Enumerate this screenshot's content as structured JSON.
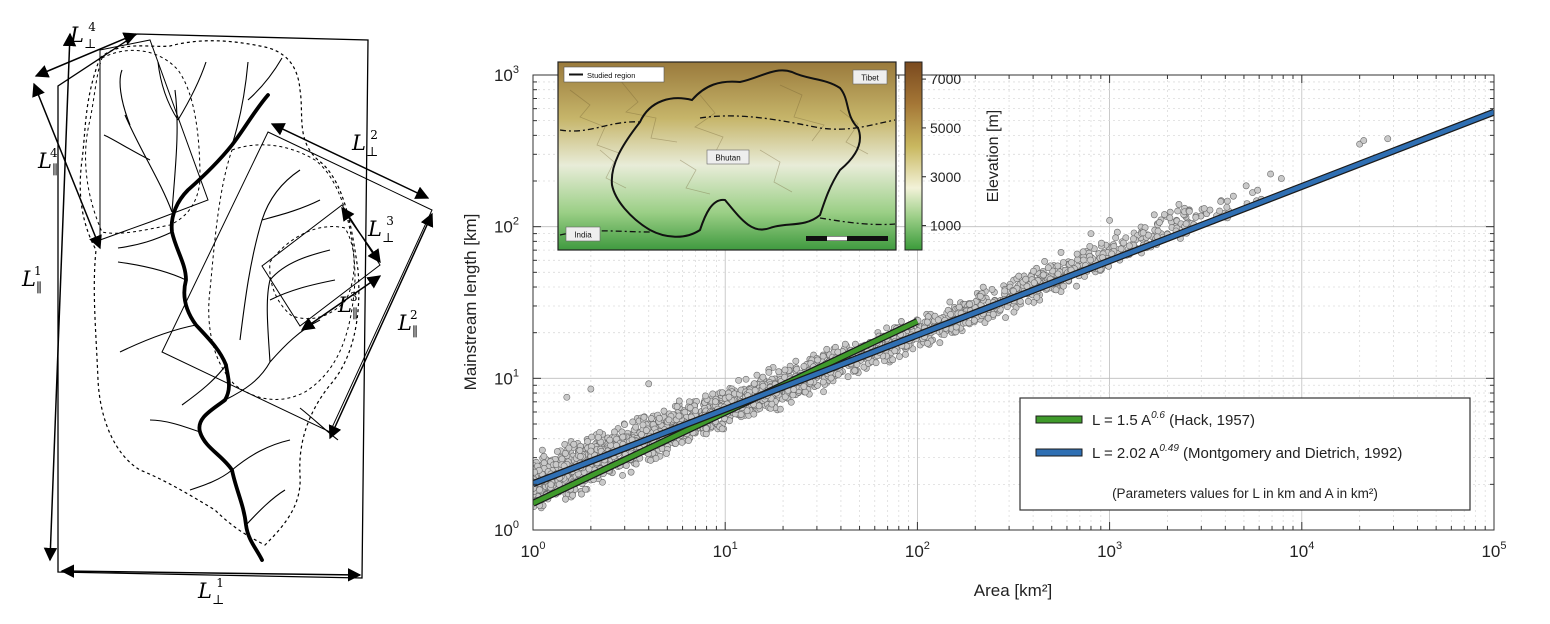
{
  "left_panel": {
    "labels": [
      {
        "id": "L-perp-1",
        "base": "L",
        "sub": "⊥",
        "sup": "1"
      },
      {
        "id": "L-par-1",
        "base": "L",
        "sub": "∥",
        "sup": "1"
      },
      {
        "id": "L-perp-2",
        "base": "L",
        "sub": "⊥",
        "sup": "2"
      },
      {
        "id": "L-par-2",
        "base": "L",
        "sub": "∥",
        "sup": "2"
      },
      {
        "id": "L-perp-3",
        "base": "L",
        "sub": "⊥",
        "sup": "3"
      },
      {
        "id": "L-par-3",
        "base": "L",
        "sub": "∥",
        "sup": "3"
      },
      {
        "id": "L-perp-4",
        "base": "L",
        "sub": "⊥",
        "sup": "4"
      },
      {
        "id": "L-par-4",
        "base": "L",
        "sub": "∥",
        "sup": "4"
      }
    ]
  },
  "chart_data": {
    "type": "scatter",
    "xlabel": "Area [km²]",
    "ylabel": "Mainstream length [km]",
    "xscale": "log",
    "yscale": "log",
    "xlim": [
      1,
      100000
    ],
    "ylim": [
      1,
      1000
    ],
    "grid": true,
    "x_ticks": [
      {
        "value": 1,
        "base": "10",
        "exp": "0"
      },
      {
        "value": 10,
        "base": "10",
        "exp": "1"
      },
      {
        "value": 100,
        "base": "10",
        "exp": "2"
      },
      {
        "value": 1000,
        "base": "10",
        "exp": "3"
      },
      {
        "value": 10000,
        "base": "10",
        "exp": "4"
      },
      {
        "value": 100000,
        "base": "10",
        "exp": "5"
      }
    ],
    "y_ticks": [
      {
        "value": 1,
        "base": "10",
        "exp": "0"
      },
      {
        "value": 10,
        "base": "10",
        "exp": "1"
      },
      {
        "value": 100,
        "base": "10",
        "exp": "2"
      },
      {
        "value": 1000,
        "base": "10",
        "exp": "3"
      }
    ],
    "scatter_envelope": [
      {
        "x": 1,
        "y_low": 1.1,
        "y_high": 3.6
      },
      {
        "x": 10,
        "y_low": 4.2,
        "y_high": 9.5
      },
      {
        "x": 100,
        "y_low": 14,
        "y_high": 28
      },
      {
        "x": 1000,
        "y_low": 45,
        "y_high": 100
      },
      {
        "x": 5000,
        "y_low": 110,
        "y_high": 220
      },
      {
        "x": 10000,
        "y_low": 150,
        "y_high": 300
      }
    ],
    "outlier_points": [
      {
        "x": 2,
        "y": 8.5
      },
      {
        "x": 4,
        "y": 9.2
      },
      {
        "x": 1.5,
        "y": 7.5
      },
      {
        "x": 20000,
        "y": 350
      },
      {
        "x": 21000,
        "y": 370
      },
      {
        "x": 28000,
        "y": 380
      },
      {
        "x": 1000,
        "y": 110
      },
      {
        "x": 800,
        "y": 90
      }
    ],
    "series": [
      {
        "name": "L = 1.5 A^0.6 (Hack, 1957)",
        "coef": 1.5,
        "exp": 0.6,
        "x_range": [
          1,
          100
        ],
        "color": "#3f9a2b"
      },
      {
        "name": "L = 2.02 A^0.49 (Montgomery and Dietrich, 1992)",
        "coef": 2.02,
        "exp": 0.49,
        "x_range": [
          1,
          100000
        ],
        "color": "#2f6fb3"
      }
    ],
    "legend": {
      "position": "bottom-right",
      "entries": [
        {
          "prefix": "L = 1.5 A",
          "exp": "0.6",
          "suffix": " (Hack, 1957)",
          "color": "#3f9a2b"
        },
        {
          "prefix": "L = 2.02 A",
          "exp": "0.49",
          "suffix": " (Montgomery and Dietrich, 1992)",
          "color": "#2f6fb3"
        }
      ],
      "note": "(Parameters values for L in km and A in km²)"
    },
    "inset_map": {
      "legend_label": "Studied region",
      "place_labels": [
        "Tibet",
        "Bhutan",
        "India"
      ],
      "colorbar_label": "Elevation [m]",
      "colorbar_ticks": [
        1000,
        3000,
        5000,
        7000
      ],
      "colorbar_range": [
        0,
        7700
      ]
    }
  }
}
